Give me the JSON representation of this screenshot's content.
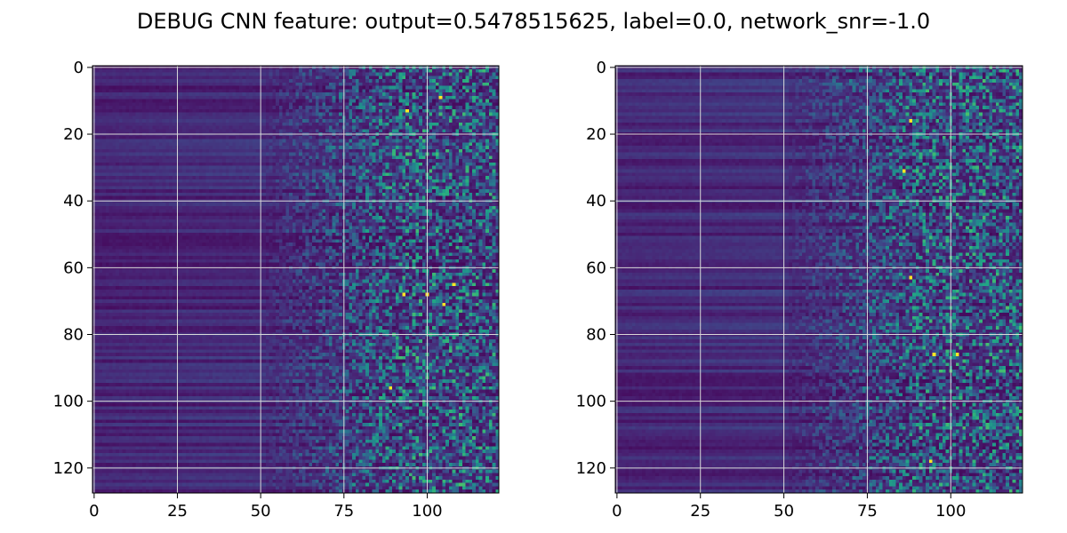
{
  "figure": {
    "title": "DEBUG CNN feature: output=0.5478515625, label=0.0, network_snr=-1.0"
  },
  "chart_data": [
    {
      "type": "heatmap",
      "colormap": "viridis",
      "rows": 128,
      "cols": 122,
      "xlim": [
        -0.5,
        121.5
      ],
      "ylim": [
        127.5,
        -0.5
      ],
      "x_ticks": [
        0,
        25,
        50,
        75,
        100
      ],
      "y_ticks": [
        0,
        20,
        40,
        60,
        80,
        100,
        120
      ],
      "x_tick_labels": [
        "0",
        "25",
        "50",
        "75",
        "100"
      ],
      "y_tick_labels": [
        "0",
        "20",
        "40",
        "60",
        "80",
        "100",
        "120"
      ],
      "grid": true,
      "pattern": "low uniform values along each row for columns 0-50, noisy bright speckle increasing toward columns 75-121",
      "hot_pixels": [
        [
          94,
          13
        ],
        [
          104,
          9
        ],
        [
          108,
          65
        ],
        [
          105,
          71
        ],
        [
          89,
          96
        ],
        [
          100,
          68
        ],
        [
          93,
          68
        ]
      ]
    },
    {
      "type": "heatmap",
      "colormap": "viridis",
      "rows": 128,
      "cols": 122,
      "xlim": [
        -0.5,
        121.5
      ],
      "ylim": [
        127.5,
        -0.5
      ],
      "x_ticks": [
        0,
        25,
        50,
        75,
        100
      ],
      "y_ticks": [
        0,
        20,
        40,
        60,
        80,
        100,
        120
      ],
      "x_tick_labels": [
        "0",
        "25",
        "50",
        "75",
        "100"
      ],
      "y_tick_labels": [
        "0",
        "20",
        "40",
        "60",
        "80",
        "100",
        "120"
      ],
      "grid": true,
      "pattern": "low uniform values along each row for columns 0-50, noisy bright speckle increasing toward columns 70-121",
      "hot_pixels": [
        [
          88,
          16
        ],
        [
          88,
          63
        ],
        [
          95,
          86
        ],
        [
          102,
          86
        ],
        [
          94,
          118
        ],
        [
          86,
          31
        ]
      ]
    }
  ]
}
